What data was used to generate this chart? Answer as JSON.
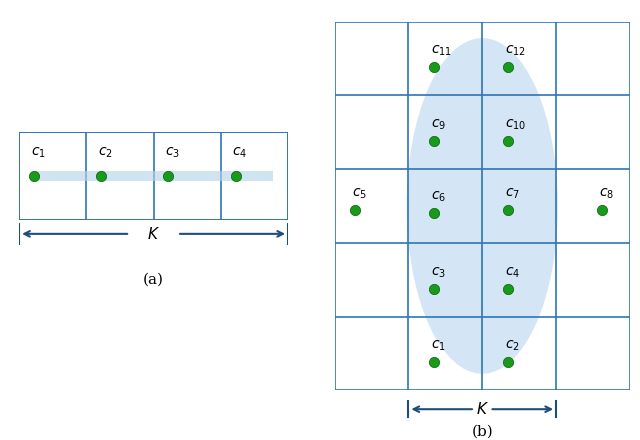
{
  "fig_width": 6.4,
  "fig_height": 4.4,
  "bg_color": "#ffffff",
  "grid_color": "#2e75b6",
  "grid_lw": 1.3,
  "dot_color": "#1a9a1a",
  "dot_edge": "#006400",
  "dot_size": 55,
  "ellipse_color": "#aaccee",
  "ellipse_alpha": 0.5,
  "label_color": "#000000",
  "label_fontsize": 10,
  "arrow_color": "#1f4e79",
  "K_fontsize": 11,
  "caption_fontsize": 11
}
